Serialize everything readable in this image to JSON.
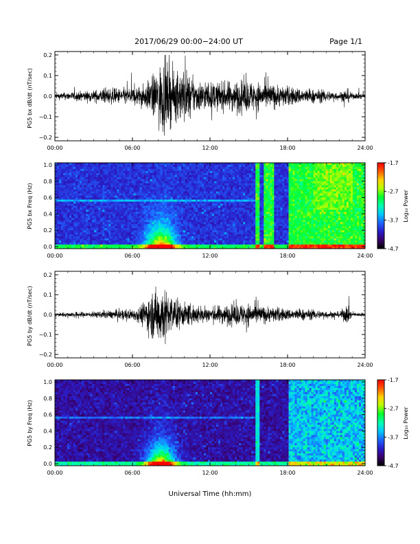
{
  "header": {
    "title": "2017/06/29  00:00−24:00 UT",
    "page": "Page 1/1"
  },
  "footer": {
    "xlabel": "Universal Time (hh:mm)"
  },
  "colorbar": {
    "ticks": [
      "-1.7",
      "-2.7",
      "-3.7",
      "-4.7"
    ],
    "label": "Log₁₀ Power",
    "colors": [
      "#000000",
      "#3a0069",
      "#2a1dc8",
      "#1f64ff",
      "#00c8ff",
      "#00ffb0",
      "#00ff30",
      "#b4ff00",
      "#ffd200",
      "#ff5a00",
      "#ff0000"
    ]
  },
  "chart_data": [
    {
      "type": "line",
      "ylabel": "PG5 bx dB/dt (nT/sec)",
      "x_ticks": [
        "00:00",
        "06:00",
        "12:00",
        "18:00",
        "24:00"
      ],
      "y_ticks": [
        "0.2",
        "0.1",
        "0.0",
        "−0.1",
        "−0.2"
      ],
      "ylim": [
        -0.2,
        0.2
      ],
      "xlim_hours": [
        0,
        24
      ],
      "series": [
        {
          "x": [
            0,
            1,
            2,
            3,
            4,
            5,
            6,
            7,
            7.5,
            8,
            8.3,
            8.6,
            9,
            9.5,
            10,
            10.5,
            11,
            12,
            13,
            14,
            15,
            16,
            17,
            18,
            19,
            20,
            21,
            22,
            22.6,
            23,
            24
          ],
          "amplitude": [
            0.015,
            0.02,
            0.025,
            0.03,
            0.04,
            0.04,
            0.045,
            0.06,
            0.1,
            0.13,
            0.19,
            0.17,
            0.14,
            0.12,
            0.15,
            0.1,
            0.08,
            0.07,
            0.07,
            0.08,
            0.08,
            0.07,
            0.06,
            0.05,
            0.04,
            0.035,
            0.03,
            0.02,
            0.04,
            0.015,
            0.015
          ]
        }
      ]
    },
    {
      "type": "heatmap",
      "ylabel": "PG5 bx Freq (Hz)",
      "x_ticks": [
        "00:00",
        "06:00",
        "12:00",
        "18:00",
        "24:00"
      ],
      "y_ticks": [
        "1.0",
        "0.8",
        "0.6",
        "0.4",
        "0.2",
        "0.0"
      ],
      "ylim": [
        0,
        1.0
      ],
      "zlim": [
        -4.7,
        -1.7
      ]
    },
    {
      "type": "line",
      "ylabel": "PG5 by dB/dt (nT/sec)",
      "x_ticks": [
        "00:00",
        "06:00",
        "12:00",
        "18:00",
        "24:00"
      ],
      "y_ticks": [
        "0.2",
        "0.1",
        "0.0",
        "−0.1",
        "−0.2"
      ],
      "ylim": [
        -0.2,
        0.2
      ],
      "xlim_hours": [
        0,
        24
      ],
      "series": [
        {
          "x": [
            0,
            1,
            2,
            3,
            4,
            5,
            6,
            6.5,
            7,
            7.5,
            8,
            8.3,
            8.6,
            9,
            9.5,
            10,
            11,
            12,
            13,
            14,
            15,
            16,
            17,
            18,
            19,
            20,
            21,
            22,
            22.6,
            23,
            24
          ],
          "amplitude": [
            0.01,
            0.012,
            0.015,
            0.015,
            0.02,
            0.025,
            0.03,
            0.04,
            0.08,
            0.12,
            0.15,
            0.17,
            0.12,
            0.1,
            0.08,
            0.06,
            0.05,
            0.04,
            0.05,
            0.055,
            0.06,
            0.045,
            0.04,
            0.03,
            0.03,
            0.025,
            0.02,
            0.015,
            0.05,
            0.01,
            0.01
          ]
        }
      ]
    },
    {
      "type": "heatmap",
      "ylabel": "PG5 by Freq (Hz)",
      "x_ticks": [
        "00:00",
        "06:00",
        "12:00",
        "18:00",
        "24:00"
      ],
      "y_ticks": [
        "1.0",
        "0.8",
        "0.6",
        "0.4",
        "0.2",
        "0.0"
      ],
      "ylim": [
        0,
        1.0
      ],
      "zlim": [
        -4.7,
        -1.7
      ]
    }
  ]
}
